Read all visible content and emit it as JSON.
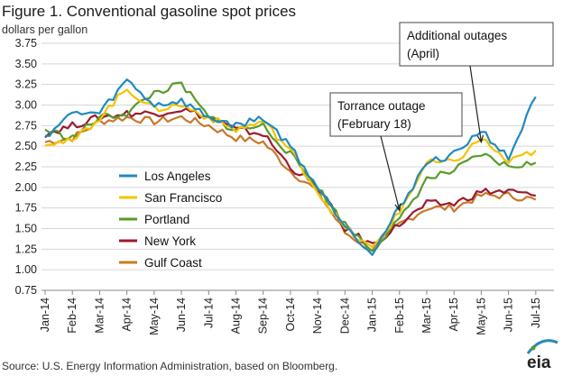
{
  "chart_data": {
    "type": "line",
    "title": "Figure 1. Conventional gasoline spot prices",
    "subtitle": "dollars per gallon",
    "source": "Source: U.S. Energy Information Administration, based on Bloomberg.",
    "logo": "eia",
    "ylim": [
      0.75,
      3.75
    ],
    "ytick_labels": [
      "0.75",
      "1.00",
      "1.25",
      "1.50",
      "1.75",
      "2.00",
      "2.25",
      "2.50",
      "2.75",
      "3.00",
      "3.25",
      "3.50",
      "3.75"
    ],
    "categories": [
      "Jan-14",
      "Feb-14",
      "Mar-14",
      "Apr-14",
      "May-14",
      "Jun-14",
      "Jul-14",
      "Aug-14",
      "Sep-14",
      "Oct-14",
      "Nov-14",
      "Dec-14",
      "Jan-15",
      "Feb-15",
      "Mar-15",
      "Apr-15",
      "May-15",
      "Jun-15",
      "Jul-15"
    ],
    "grid": "horizontal",
    "legend_position": "left",
    "series": [
      {
        "name": "Los Angeles",
        "color": "#1f8ac0",
        "values": [
          2.62,
          2.9,
          2.9,
          3.3,
          3.0,
          3.05,
          2.85,
          2.75,
          2.85,
          2.5,
          2.0,
          1.55,
          1.2,
          1.75,
          2.3,
          2.4,
          2.7,
          2.35,
          3.1
        ]
      },
      {
        "name": "San Francisco",
        "color": "#f4c300",
        "values": [
          2.55,
          2.55,
          2.85,
          3.2,
          2.95,
          3.0,
          2.85,
          2.7,
          2.8,
          2.45,
          1.95,
          1.5,
          1.25,
          1.7,
          2.3,
          2.3,
          2.6,
          2.3,
          2.45
        ]
      },
      {
        "name": "Portland",
        "color": "#5a9a2c",
        "values": [
          2.7,
          2.6,
          2.85,
          2.9,
          3.15,
          3.25,
          2.85,
          2.7,
          2.75,
          2.4,
          2.0,
          1.55,
          1.25,
          1.6,
          2.1,
          2.2,
          2.4,
          2.25,
          2.3
        ]
      },
      {
        "name": "New York",
        "color": "#9b1b30",
        "values": [
          2.65,
          2.75,
          2.85,
          2.9,
          2.9,
          2.95,
          2.85,
          2.7,
          2.65,
          2.25,
          2.0,
          1.5,
          1.3,
          1.55,
          1.8,
          1.8,
          1.95,
          1.95,
          1.9
        ]
      },
      {
        "name": "Gulf Coast",
        "color": "#c8782a",
        "values": [
          2.55,
          2.6,
          2.8,
          2.85,
          2.8,
          2.85,
          2.75,
          2.6,
          2.55,
          2.2,
          1.95,
          1.45,
          1.25,
          1.55,
          1.75,
          1.75,
          1.9,
          1.9,
          1.85
        ]
      }
    ],
    "annotations": [
      {
        "lines": [
          "Torrance outage",
          "(February 18)"
        ],
        "x_category": "Feb-15",
        "y": 1.72
      },
      {
        "lines": [
          "Additional outages",
          "(April)"
        ],
        "x_category": "May-15",
        "y": 2.55
      }
    ]
  }
}
